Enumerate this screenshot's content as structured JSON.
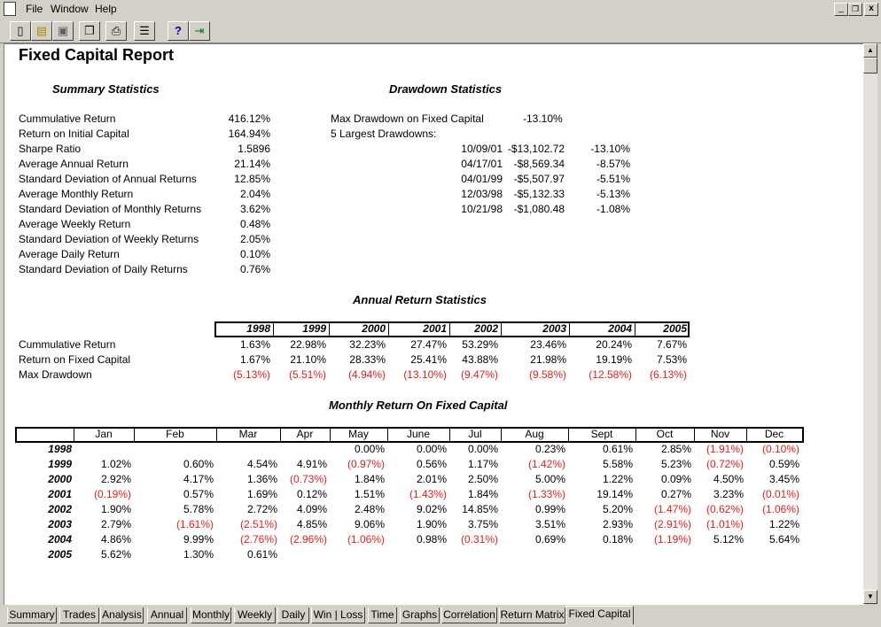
{
  "menu": {
    "items": [
      "File",
      "Window",
      "Help"
    ],
    "window_buttons": [
      "_",
      "²",
      "x"
    ]
  },
  "toolbar": {
    "buttons": [
      "new-icon",
      "open-icon",
      "save-icon",
      "copy-icon",
      "print-icon",
      "properties-icon",
      "help-icon",
      "exit-icon"
    ]
  },
  "report": {
    "title": "Fixed Capital Report",
    "summary_title": "Summary Statistics",
    "drawdown_title": "Drawdown Statistics",
    "annual_title": "Annual Return Statistics",
    "monthly_title": "Monthly Return On Fixed Capital",
    "summary": [
      {
        "label": "Cummulative Return",
        "value": "416.12%"
      },
      {
        "label": "Return on Initial Capital",
        "value": "164.94%"
      },
      {
        "label": "Sharpe Ratio",
        "value": "1.5896"
      },
      {
        "label": "Average Annual Return",
        "value": "21.14%"
      },
      {
        "label": "Standard Deviation of Annual Returns",
        "value": "12.85%"
      },
      {
        "label": "Average Monthly Return",
        "value": "2.04%"
      },
      {
        "label": "Standard Deviation of Monthly Returns",
        "value": "3.62%"
      },
      {
        "label": "Average Weekly Return",
        "value": "0.48%"
      },
      {
        "label": "Standard Deviation of Weekly Returns",
        "value": "2.05%"
      },
      {
        "label": "Average Daily Return",
        "value": "0.10%"
      },
      {
        "label": "Standard Deviation of Daily Returns",
        "value": "0.76%"
      }
    ],
    "drawdown": {
      "max_label": "Max Drawdown on Fixed Capital",
      "max_value": "-13.10%",
      "largest_label": "5 Largest Drawdowns:",
      "rows": [
        {
          "date": "10/09/01",
          "amount": "-$13,102.72",
          "pct": "-13.10%"
        },
        {
          "date": "04/17/01",
          "amount": "-$8,569.34",
          "pct": "-8.57%"
        },
        {
          "date": "04/01/99",
          "amount": "-$5,507.97",
          "pct": "-5.51%"
        },
        {
          "date": "12/03/98",
          "amount": "-$5,132.33",
          "pct": "-5.13%"
        },
        {
          "date": "10/21/98",
          "amount": "-$1,080.48",
          "pct": "-1.08%"
        }
      ]
    },
    "annual": {
      "years": [
        "1998",
        "1999",
        "2000",
        "2001",
        "2002",
        "2003",
        "2004",
        "2005"
      ],
      "rows": [
        {
          "label": "Cummulative Return",
          "values": [
            "1.63%",
            "22.98%",
            "32.23%",
            "27.47%",
            "53.29%",
            "23.46%",
            "20.24%",
            "7.67%"
          ],
          "red": false
        },
        {
          "label": "Return on Fixed Capital",
          "values": [
            "1.67%",
            "21.10%",
            "28.33%",
            "25.41%",
            "43.88%",
            "21.98%",
            "19.19%",
            "7.53%"
          ],
          "red": false
        },
        {
          "label": "Max Drawdown",
          "values": [
            "(5.13%)",
            "(5.51%)",
            "(4.94%)",
            "(13.10%)",
            "(9.47%)",
            "(9.58%)",
            "(12.58%)",
            "(6.13%)"
          ],
          "red": true
        }
      ]
    },
    "monthly": {
      "months": [
        "Jan",
        "Feb",
        "Mar",
        "Apr",
        "May",
        "June",
        "Jul",
        "Aug",
        "Sept",
        "Oct",
        "Nov",
        "Dec"
      ],
      "rows": [
        {
          "year": "1998",
          "values": [
            "",
            "",
            "",
            "",
            "0.00%",
            "0.00%",
            "0.00%",
            "0.23%",
            "0.61%",
            "2.85%",
            "(1.91%)",
            "(0.10%)"
          ]
        },
        {
          "year": "1999",
          "values": [
            "1.02%",
            "0.60%",
            "4.54%",
            "4.91%",
            "(0.97%)",
            "0.56%",
            "1.17%",
            "(1.42%)",
            "5.58%",
            "5.23%",
            "(0.72%)",
            "0.59%"
          ]
        },
        {
          "year": "2000",
          "values": [
            "2.92%",
            "4.17%",
            "1.36%",
            "(0.73%)",
            "1.84%",
            "2.01%",
            "2.50%",
            "5.00%",
            "1.22%",
            "0.09%",
            "4.50%",
            "3.45%"
          ]
        },
        {
          "year": "2001",
          "values": [
            "(0.19%)",
            "0.57%",
            "1.69%",
            "0.12%",
            "1.51%",
            "(1.43%)",
            "1.84%",
            "(1.33%)",
            "19.14%",
            "0.27%",
            "3.23%",
            "(0.01%)"
          ]
        },
        {
          "year": "2002",
          "values": [
            "1.90%",
            "5.78%",
            "2.72%",
            "4.09%",
            "2.48%",
            "9.02%",
            "14.85%",
            "0.99%",
            "5.20%",
            "(1.47%)",
            "(0.62%)",
            "(1.06%)"
          ]
        },
        {
          "year": "2003",
          "values": [
            "2.79%",
            "(1.61%)",
            "(2.51%)",
            "4.85%",
            "9.06%",
            "1.90%",
            "3.75%",
            "3.51%",
            "2.93%",
            "(2.91%)",
            "(1.01%)",
            "1.22%"
          ]
        },
        {
          "year": "2004",
          "values": [
            "4.86%",
            "9.99%",
            "(2.76%)",
            "(2.96%)",
            "(1.06%)",
            "0.98%",
            "(0.31%)",
            "0.69%",
            "0.18%",
            "(1.19%)",
            "5.12%",
            "5.64%"
          ]
        },
        {
          "year": "2005",
          "values": [
            "5.62%",
            "1.30%",
            "0.61%",
            "",
            "",
            "",
            "",
            "",
            "",
            "",
            "",
            ""
          ]
        }
      ]
    }
  },
  "tabs": {
    "items": [
      "Summary",
      "Trades",
      "Analysis",
      "Annual",
      "Monthly",
      "Weekly",
      "Daily",
      "Win | Loss",
      "Time",
      "Graphs",
      "Correlation",
      "Return Matrix",
      "Fixed Capital"
    ],
    "active": "Fixed Capital"
  }
}
